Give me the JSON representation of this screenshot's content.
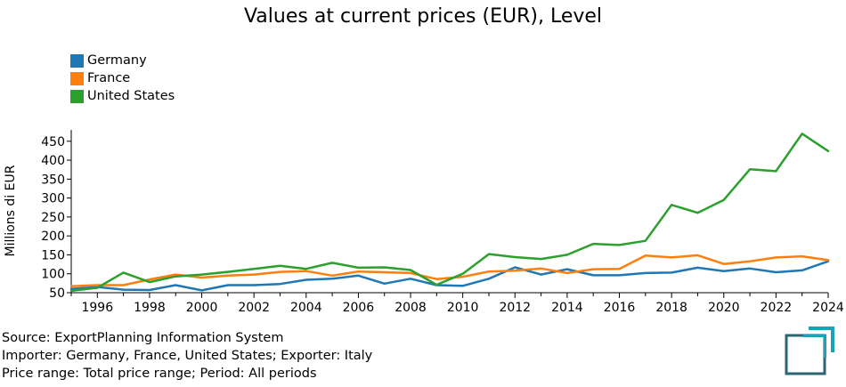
{
  "chart_data": {
    "type": "line",
    "title": "Values at current prices (EUR), Level",
    "ylabel": "Millions di EUR",
    "xlabel": "",
    "xlim": [
      1995,
      2024
    ],
    "ylim": [
      50,
      480
    ],
    "x_ticks": [
      1996,
      1998,
      2000,
      2002,
      2004,
      2006,
      2008,
      2010,
      2012,
      2014,
      2016,
      2018,
      2020,
      2022,
      2024
    ],
    "y_ticks": [
      50,
      100,
      150,
      200,
      250,
      300,
      350,
      400,
      450
    ],
    "legend_position": "top-left",
    "grid": false,
    "x": [
      1995,
      1996,
      1997,
      1998,
      1999,
      2000,
      2001,
      2002,
      2003,
      2004,
      2005,
      2006,
      2007,
      2008,
      2009,
      2010,
      2011,
      2012,
      2013,
      2014,
      2015,
      2016,
      2017,
      2018,
      2019,
      2020,
      2021,
      2022,
      2023,
      2024
    ],
    "series": [
      {
        "name": "Germany",
        "color": "#1f77b4",
        "values": [
          60,
          65,
          58,
          57,
          70,
          56,
          70,
          70,
          73,
          84,
          87,
          95,
          74,
          87,
          70,
          68,
          87,
          117,
          98,
          112,
          96,
          96,
          102,
          103,
          116,
          107,
          114,
          104,
          109,
          133
        ]
      },
      {
        "name": "France",
        "color": "#ff7f0e",
        "values": [
          67,
          70,
          70,
          85,
          98,
          90,
          95,
          98,
          105,
          107,
          95,
          106,
          104,
          102,
          86,
          92,
          106,
          108,
          114,
          102,
          112,
          113,
          148,
          143,
          149,
          126,
          133,
          143,
          146,
          136
        ]
      },
      {
        "name": "United States",
        "color": "#2ca02c",
        "values": [
          55,
          63,
          103,
          78,
          93,
          98,
          105,
          113,
          121,
          113,
          129,
          116,
          117,
          110,
          71,
          100,
          152,
          144,
          139,
          150,
          179,
          176,
          187,
          282,
          261,
          295,
          376,
          371,
          470,
          424
        ]
      }
    ]
  },
  "footer": {
    "line1": "Source: ExportPlanning Information System",
    "line2": "Importer: Germany, France, United States; Exporter: Italy",
    "line3": "Price range: Total price range; Period: All periods"
  },
  "logo": {
    "icon": "exportplanning-logo-icon",
    "color_dark": "#2b6572",
    "color_light": "#1aa3b8"
  }
}
